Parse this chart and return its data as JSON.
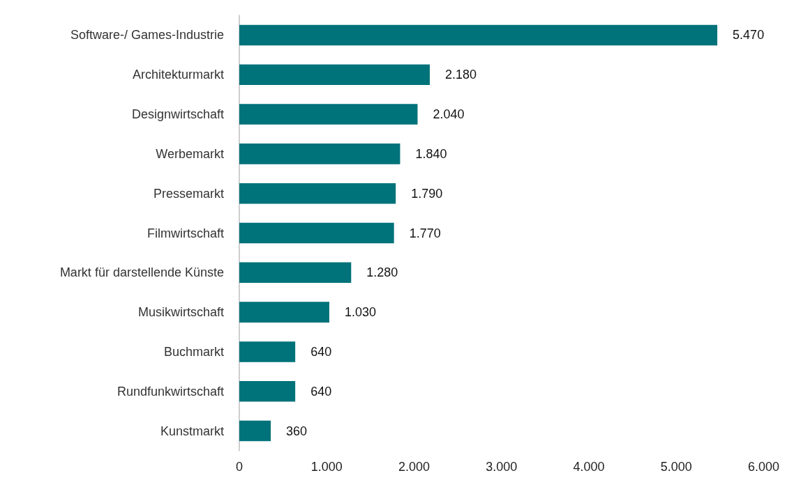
{
  "chart_data": {
    "type": "bar",
    "orientation": "horizontal",
    "categories": [
      "Software-/ Games-Industrie",
      "Architekturmarkt",
      "Designwirtschaft",
      "Werbemarkt",
      "Pressemarkt",
      "Filmwirtschaft",
      "Markt für darstellende Künste",
      "Musikwirtschaft",
      "Buchmarkt",
      "Rundfunkwirtschaft",
      "Kunstmarkt"
    ],
    "values": [
      5470,
      2180,
      2040,
      1840,
      1790,
      1770,
      1280,
      1030,
      640,
      640,
      360
    ],
    "value_labels": [
      "5.470",
      "2.180",
      "2.040",
      "1.840",
      "1.790",
      "1.770",
      "1.280",
      "1.030",
      "640",
      "640",
      "360"
    ],
    "color": "#00727a",
    "xlim": [
      0,
      6000
    ],
    "xticks": [
      0,
      {
        "value": 1000,
        "label": "1.000"
      },
      {
        "value": 2000,
        "label": "2.000"
      },
      {
        "value": 3000,
        "label": "3.000"
      },
      {
        "value": 4000,
        "label": "4.000"
      },
      {
        "value": 5000,
        "label": "5.000"
      },
      {
        "value": 6000,
        "label": "6.000"
      }
    ],
    "grid": false
  }
}
